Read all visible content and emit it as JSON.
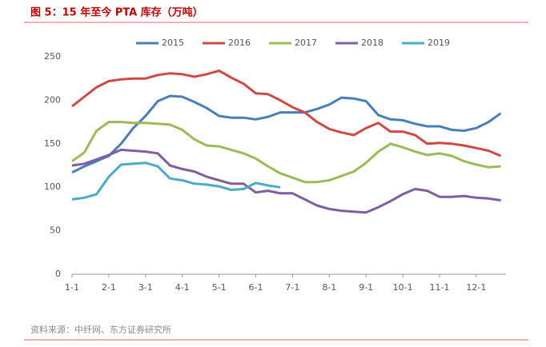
{
  "chart_data": {
    "type": "line",
    "title": "图 5：15 年至今 PTA 库存（万吨）",
    "source": "资料来源：中纤网、东方证券研究所",
    "categories": [
      "1-1",
      null,
      null,
      "2-1",
      null,
      null,
      "3-1",
      null,
      null,
      "4-1",
      null,
      null,
      "5-1",
      null,
      null,
      "6-1",
      null,
      null,
      "7-1",
      null,
      null,
      "8-1",
      null,
      null,
      "9-1",
      null,
      null,
      "10-1",
      null,
      null,
      "11-1",
      null,
      null,
      "12-1",
      null,
      null
    ],
    "ylim": [
      0,
      250
    ],
    "yticks": [
      0,
      50,
      100,
      150,
      200,
      250
    ],
    "grid": false,
    "legend": "top",
    "series": [
      {
        "name": "2015",
        "color": "#4a7ebb",
        "values": [
          117,
          124,
          130,
          136,
          150,
          168,
          182,
          199,
          205,
          204,
          198,
          191,
          182,
          180,
          180,
          178,
          181,
          186,
          186,
          186,
          190,
          195,
          203,
          202,
          199,
          183,
          178,
          177,
          173,
          170,
          170,
          166,
          165,
          168,
          175,
          185
        ]
      },
      {
        "name": "2016",
        "color": "#cd4a47",
        "values": [
          193,
          204,
          215,
          222,
          224,
          225,
          225,
          229,
          231,
          230,
          227,
          230,
          234,
          226,
          219,
          208,
          207,
          200,
          192,
          186,
          175,
          167,
          163,
          160,
          168,
          174,
          164,
          164,
          160,
          150,
          151,
          150,
          148,
          145,
          142,
          136
        ]
      },
      {
        "name": "2017",
        "color": "#9bbb59",
        "values": [
          130,
          140,
          165,
          175,
          175,
          174,
          174,
          173,
          172,
          166,
          155,
          148,
          147,
          143,
          139,
          133,
          124,
          116,
          111,
          106,
          106,
          108,
          113,
          118,
          128,
          141,
          150,
          146,
          141,
          137,
          139,
          136,
          130,
          126,
          123,
          124
        ]
      },
      {
        "name": "2018",
        "color": "#7f5fa1",
        "values": [
          125,
          127,
          132,
          137,
          143,
          142,
          141,
          139,
          125,
          121,
          118,
          112,
          108,
          104,
          104,
          94,
          96,
          93,
          93,
          86,
          79,
          75,
          73,
          72,
          71,
          77,
          84,
          92,
          98,
          96,
          89,
          89,
          90,
          88,
          87,
          85
        ]
      },
      {
        "name": "2019",
        "color": "#4bacc6",
        "values": [
          86,
          88,
          92,
          112,
          126,
          127,
          128,
          124,
          110,
          108,
          104,
          103,
          101,
          97,
          98,
          105,
          102,
          100,
          null,
          null,
          null,
          null,
          null,
          null,
          null,
          null,
          null,
          null,
          null,
          null,
          null,
          null,
          null,
          null,
          null,
          null
        ]
      }
    ]
  }
}
